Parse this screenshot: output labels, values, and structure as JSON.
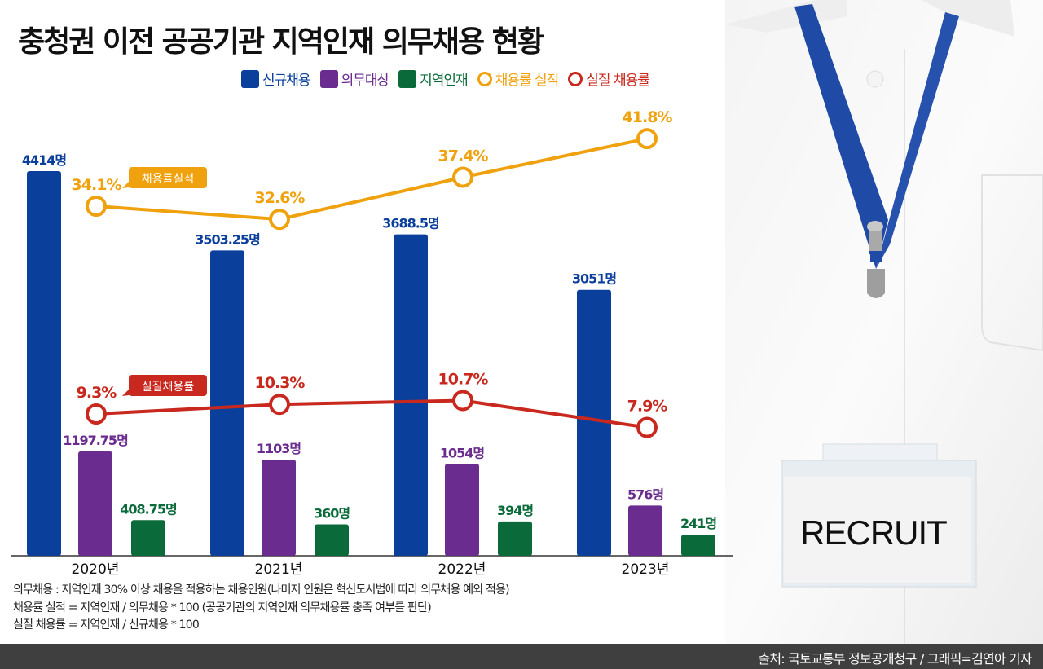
{
  "chart_data": {
    "type": "bar+line",
    "title": "충청권 이전 공공기관 지역인재 의무채용 현황",
    "categories": [
      "2020년",
      "2021년",
      "2022년",
      "2023년"
    ],
    "unit": "명",
    "bar_series": [
      {
        "name": "신규채용",
        "color": "#0b3f9c",
        "values": [
          4414,
          3503.25,
          3688.5,
          3051
        ],
        "labels": [
          "4414명",
          "3503.25명",
          "3688.5명",
          "3051명"
        ]
      },
      {
        "name": "의무대상",
        "color": "#6a2c8e",
        "values": [
          1197.75,
          1103,
          1054,
          576
        ],
        "labels": [
          "1197.75명",
          "1103명",
          "1054명",
          "576명"
        ]
      },
      {
        "name": "지역인재",
        "color": "#0b6a3a",
        "values": [
          408.75,
          360,
          394,
          241
        ],
        "labels": [
          "408.75명",
          "360명",
          "394명",
          "241명"
        ]
      }
    ],
    "line_series": [
      {
        "name": "채용률 실적",
        "color": "#f0a10e",
        "values": [
          34.1,
          32.6,
          37.4,
          41.8
        ],
        "labels": [
          "34.1%",
          "32.6%",
          "37.4%",
          "41.8%"
        ],
        "callout": "채용률실적"
      },
      {
        "name": "실질 채용률",
        "color": "#c8281e",
        "values": [
          9.3,
          10.3,
          10.7,
          7.9
        ],
        "labels": [
          "9.3%",
          "10.3%",
          "10.7%",
          "7.9%"
        ],
        "callout": "실질채용률"
      }
    ],
    "grid": false,
    "legend_placement": "top"
  },
  "notes": [
    "의무채용 : 지역인재 30% 이상 채용을 적용하는 채용인원(나머지 인원은 혁신도시법에 따라 의무채용 예외 적용)",
    "채용률 실적 = 지역인재 / 의무채용 * 100 (공공기관의 지역인재 의무채용률 충족 여부를 판단)",
    "실질 채용률 = 지역인재 / 신규채용 * 100"
  ],
  "source": "출처: 국토교통부 정보공개청구 / 그래픽=김연아 기자",
  "photo": {
    "badge_text": "RECRUIT"
  }
}
